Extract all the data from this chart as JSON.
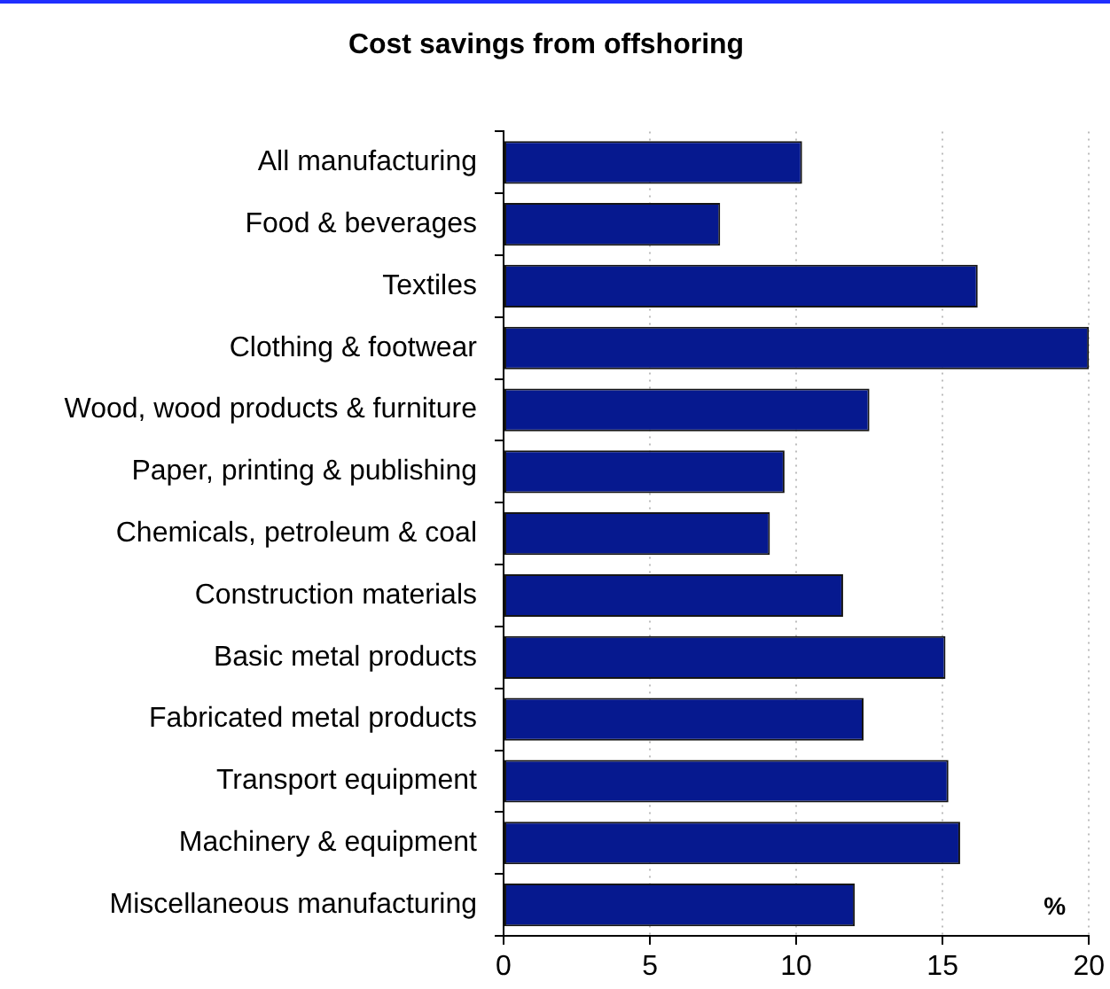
{
  "chart_data": {
    "type": "bar",
    "orientation": "horizontal",
    "title": "Cost savings from offshoring",
    "categories": [
      "All manufacturing",
      "Food & beverages",
      "Textiles",
      "Clothing & footwear",
      "Wood, wood products & furniture",
      "Paper, printing & publishing",
      "Chemicals, petroleum & coal",
      "Construction materials",
      "Basic metal products",
      "Fabricated metal products",
      "Transport equipment",
      "Machinery & equipment",
      "Miscellaneous manufacturing"
    ],
    "values": [
      10.2,
      7.4,
      16.2,
      20,
      12.5,
      9.6,
      9.1,
      11.6,
      15.1,
      12.3,
      15.2,
      15.6,
      12.0
    ],
    "color": "#06198f",
    "xlim": [
      0,
      20
    ],
    "xticks": [
      0,
      5,
      10,
      15,
      20
    ],
    "grid": "x",
    "legend": false,
    "annotations": [
      "%"
    ]
  }
}
